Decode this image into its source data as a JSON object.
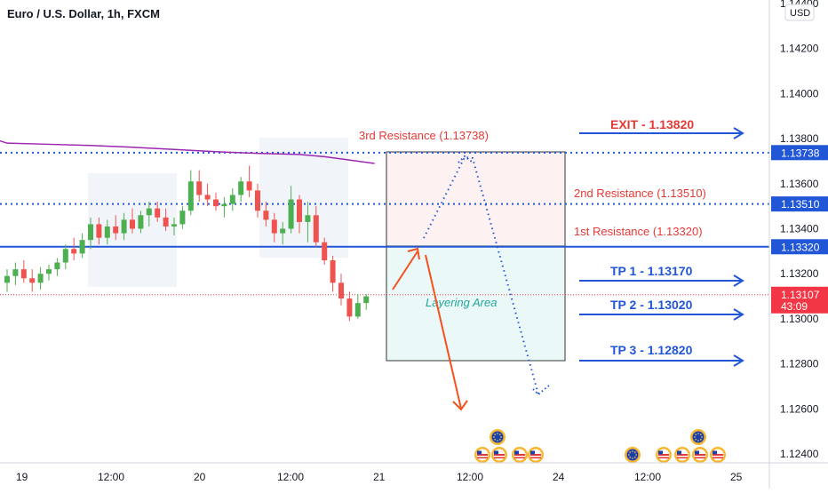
{
  "header": {
    "title": "Euro / U.S. Dollar, 1h, FXCM"
  },
  "price_axis": {
    "currency": "USD",
    "ticks": [
      "1.14400",
      "1.14200",
      "1.14000",
      "1.13800",
      "1.13600",
      "1.13400",
      "1.13200",
      "1.13000",
      "1.12800",
      "1.12600",
      "1.12400"
    ],
    "tick_values": [
      1.144,
      1.142,
      1.14,
      1.138,
      1.136,
      1.134,
      1.132,
      1.13,
      1.128,
      1.126,
      1.124
    ],
    "price_labels": [
      {
        "value": "1.13738",
        "y": 1.13738,
        "color": "#2157d6"
      },
      {
        "value": "1.13510",
        "y": 1.1351,
        "color": "#2157d6"
      },
      {
        "value": "1.13320",
        "y": 1.1332,
        "color": "#2157d6"
      },
      {
        "value": "1.13107",
        "sub": "43:09",
        "y": 1.13107,
        "color": "#f23645"
      }
    ]
  },
  "time_axis": {
    "labels": [
      "19",
      "12:00",
      "20",
      "12:00",
      "21",
      "12:00",
      "24",
      "12:00",
      "25"
    ]
  },
  "annotations": {
    "res3": "3rd Resistance (1.13738)",
    "res2": "2nd Resistance (1.13510)",
    "res1": "1st Resistance (1.13320)",
    "layering": "Layering Area",
    "exit": "EXIT - 1.13820",
    "tp1": "TP 1 - 1.13170",
    "tp2": "TP 2 - 1.13020",
    "tp3": "TP 3 - 1.12820"
  },
  "colors": {
    "up": "#4caf50",
    "down": "#ef5350",
    "ma": "#9c27b0",
    "level": "#2157d6",
    "resistance_text": "#e53935",
    "target_text": "#2157d6",
    "exit_text": "#e53935",
    "layering_text": "#26a69a",
    "arrow_orange": "#f4511e"
  },
  "chart_data": {
    "type": "candlestick",
    "title": "Euro / U.S. Dollar, 1h, FXCM",
    "y_range": [
      1.1235,
      1.1447
    ],
    "levels": [
      1.13738,
      1.1351,
      1.1332,
      1.13107
    ],
    "candles": [
      {
        "o": 1.1316,
        "h": 1.1322,
        "l": 1.1312,
        "c": 1.1319
      },
      {
        "o": 1.1319,
        "h": 1.1325,
        "l": 1.1315,
        "c": 1.1322
      },
      {
        "o": 1.1322,
        "h": 1.1326,
        "l": 1.1316,
        "c": 1.1318
      },
      {
        "o": 1.1318,
        "h": 1.1322,
        "l": 1.1312,
        "c": 1.1316
      },
      {
        "o": 1.1316,
        "h": 1.1323,
        "l": 1.1313,
        "c": 1.132
      },
      {
        "o": 1.132,
        "h": 1.1324,
        "l": 1.1317,
        "c": 1.1322
      },
      {
        "o": 1.1322,
        "h": 1.1327,
        "l": 1.1319,
        "c": 1.1325
      },
      {
        "o": 1.1325,
        "h": 1.1333,
        "l": 1.1322,
        "c": 1.1331
      },
      {
        "o": 1.1331,
        "h": 1.1336,
        "l": 1.1326,
        "c": 1.1329
      },
      {
        "o": 1.1329,
        "h": 1.1338,
        "l": 1.1327,
        "c": 1.1335
      },
      {
        "o": 1.1335,
        "h": 1.1345,
        "l": 1.1331,
        "c": 1.1342
      },
      {
        "o": 1.1342,
        "h": 1.1345,
        "l": 1.1333,
        "c": 1.1336
      },
      {
        "o": 1.1336,
        "h": 1.1344,
        "l": 1.1333,
        "c": 1.1341
      },
      {
        "o": 1.1341,
        "h": 1.1346,
        "l": 1.1335,
        "c": 1.1338
      },
      {
        "o": 1.1338,
        "h": 1.1347,
        "l": 1.1335,
        "c": 1.1344
      },
      {
        "o": 1.1344,
        "h": 1.1349,
        "l": 1.1338,
        "c": 1.134
      },
      {
        "o": 1.134,
        "h": 1.1348,
        "l": 1.1338,
        "c": 1.1346
      },
      {
        "o": 1.1346,
        "h": 1.1352,
        "l": 1.1341,
        "c": 1.1349
      },
      {
        "o": 1.1349,
        "h": 1.1352,
        "l": 1.1343,
        "c": 1.1345
      },
      {
        "o": 1.1345,
        "h": 1.1349,
        "l": 1.1339,
        "c": 1.1341
      },
      {
        "o": 1.1341,
        "h": 1.1345,
        "l": 1.1337,
        "c": 1.1342
      },
      {
        "o": 1.1342,
        "h": 1.135,
        "l": 1.134,
        "c": 1.1348
      },
      {
        "o": 1.1348,
        "h": 1.1366,
        "l": 1.1346,
        "c": 1.1361
      },
      {
        "o": 1.1361,
        "h": 1.1366,
        "l": 1.1352,
        "c": 1.1355
      },
      {
        "o": 1.1355,
        "h": 1.136,
        "l": 1.135,
        "c": 1.1353
      },
      {
        "o": 1.1353,
        "h": 1.1356,
        "l": 1.1348,
        "c": 1.135
      },
      {
        "o": 1.135,
        "h": 1.1354,
        "l": 1.1345,
        "c": 1.1351
      },
      {
        "o": 1.1351,
        "h": 1.1358,
        "l": 1.1348,
        "c": 1.1355
      },
      {
        "o": 1.1355,
        "h": 1.1363,
        "l": 1.1352,
        "c": 1.1361
      },
      {
        "o": 1.1361,
        "h": 1.1368,
        "l": 1.1354,
        "c": 1.1357
      },
      {
        "o": 1.1357,
        "h": 1.136,
        "l": 1.1345,
        "c": 1.1348
      },
      {
        "o": 1.1348,
        "h": 1.1352,
        "l": 1.1341,
        "c": 1.1344
      },
      {
        "o": 1.1344,
        "h": 1.1347,
        "l": 1.1334,
        "c": 1.1338
      },
      {
        "o": 1.1338,
        "h": 1.1343,
        "l": 1.1333,
        "c": 1.134
      },
      {
        "o": 1.134,
        "h": 1.1359,
        "l": 1.1338,
        "c": 1.1353
      },
      {
        "o": 1.1353,
        "h": 1.1355,
        "l": 1.1338,
        "c": 1.1343
      },
      {
        "o": 1.1343,
        "h": 1.1352,
        "l": 1.1334,
        "c": 1.1346
      },
      {
        "o": 1.1346,
        "h": 1.135,
        "l": 1.1332,
        "c": 1.1334
      },
      {
        "o": 1.1334,
        "h": 1.1336,
        "l": 1.1324,
        "c": 1.1326
      },
      {
        "o": 1.1326,
        "h": 1.1328,
        "l": 1.1312,
        "c": 1.1316
      },
      {
        "o": 1.1316,
        "h": 1.132,
        "l": 1.1306,
        "c": 1.1309
      },
      {
        "o": 1.1309,
        "h": 1.1312,
        "l": 1.1299,
        "c": 1.1301
      },
      {
        "o": 1.1301,
        "h": 1.1311,
        "l": 1.13,
        "c": 1.1307
      },
      {
        "o": 1.1307,
        "h": 1.1311,
        "l": 1.1304,
        "c": 1.131
      }
    ],
    "moving_average": [
      {
        "x": 0,
        "y": 1.1378
      },
      {
        "x": 5,
        "y": 1.13775
      },
      {
        "x": 10,
        "y": 1.1377
      },
      {
        "x": 15,
        "y": 1.13762
      },
      {
        "x": 20,
        "y": 1.13752
      },
      {
        "x": 25,
        "y": 1.13742
      },
      {
        "x": 30,
        "y": 1.13735
      },
      {
        "x": 35,
        "y": 1.1373
      },
      {
        "x": 38,
        "y": 1.1372
      },
      {
        "x": 40,
        "y": 1.1371
      },
      {
        "x": 43,
        "y": 1.13695
      },
      {
        "x": 44,
        "y": 1.1369
      }
    ]
  }
}
